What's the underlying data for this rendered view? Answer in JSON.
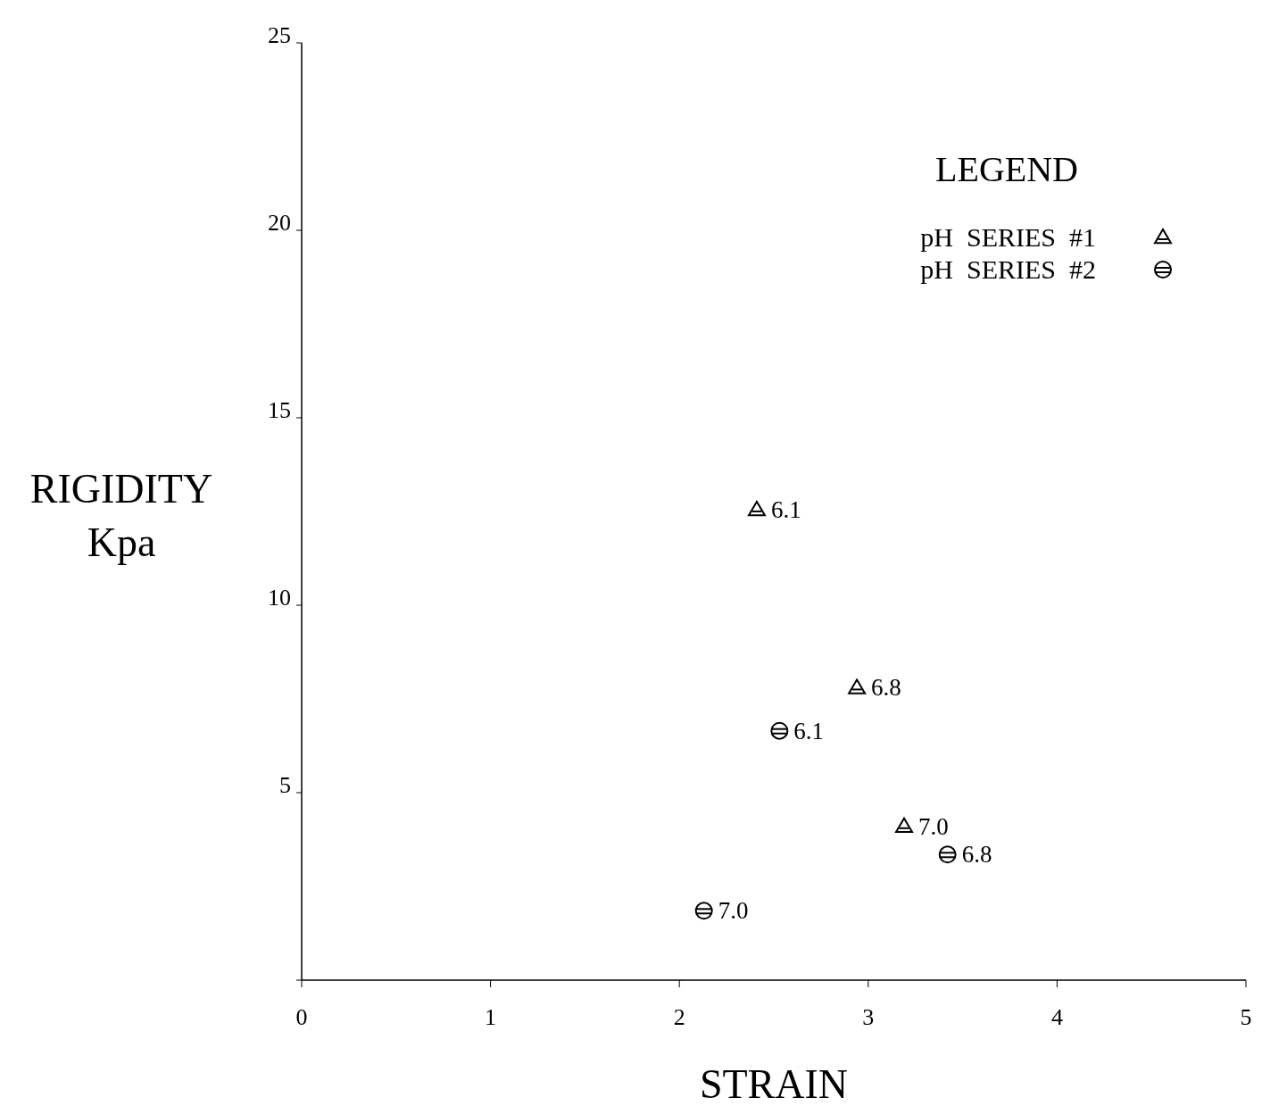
{
  "chart_data": {
    "type": "scatter",
    "xlabel": "STRAIN",
    "ylabel": "RIGIDITY\nKpa",
    "legend_title": "LEGEND",
    "xlim": [
      0,
      5
    ],
    "xticks": [
      0,
      1,
      2,
      3,
      4,
      5
    ],
    "ylim": [
      0,
      25
    ],
    "yticks": [
      {
        "value": 0,
        "label": null
      },
      5,
      10,
      15,
      20,
      25
    ],
    "grid": false,
    "legend": "top right",
    "series": [
      {
        "name": "pH  SERIES  #1",
        "color": "#000000",
        "marker": "triangle",
        "x": [
          2.41,
          2.94,
          3.19
        ],
        "values": [
          12.55,
          7.8,
          4.1
        ]
      },
      {
        "name": "pH  SERIES  #2",
        "color": "#000000",
        "marker": "circle",
        "x": [
          2.53,
          3.42,
          2.13
        ],
        "values": [
          6.65,
          3.35,
          1.85
        ]
      }
    ],
    "annotations": [
      {
        "text": "6.1",
        "x": 2.41,
        "y": 12.55
      },
      {
        "text": "6.8",
        "x": 2.94,
        "y": 7.8
      },
      {
        "text": "7.0",
        "x": 3.19,
        "y": 4.1
      },
      {
        "text": "6.1",
        "x": 2.53,
        "y": 6.65
      },
      {
        "text": "6.8",
        "x": 3.42,
        "y": 3.35
      },
      {
        "text": "7.0",
        "x": 2.13,
        "y": 1.85
      }
    ]
  }
}
